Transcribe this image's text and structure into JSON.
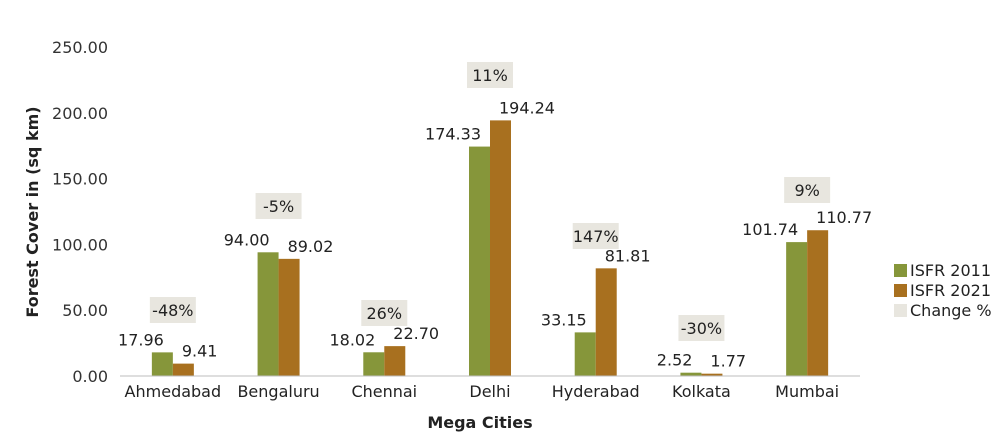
{
  "chart_data": {
    "type": "bar",
    "xlabel": "Mega Cities",
    "ylabel": "Forest Cover in (sq km)",
    "ylim": [
      0,
      250
    ],
    "yticks": [
      "0.00",
      "50.00",
      "100.00",
      "150.00",
      "200.00",
      "250.00"
    ],
    "categories": [
      "Ahmedabad",
      "Bengaluru",
      "Chennai",
      "Delhi",
      "Hyderabad",
      "Kolkata",
      "Mumbai"
    ],
    "series": [
      {
        "name": "ISFR 2011",
        "color": "#86963a",
        "values": [
          17.96,
          94.0,
          18.02,
          174.33,
          33.15,
          2.52,
          101.74
        ],
        "labels": [
          "17.96",
          "94.00",
          "18.02",
          "174.33",
          "33.15",
          "2.52",
          "101.74"
        ]
      },
      {
        "name": "ISFR 2021",
        "color": "#a8701f",
        "values": [
          9.41,
          89.02,
          22.7,
          194.24,
          81.81,
          1.77,
          110.77
        ],
        "labels": [
          "9.41",
          "89.02",
          "22.70",
          "194.24",
          "81.81",
          "1.77",
          "110.77"
        ]
      }
    ],
    "change": {
      "name": "Change %",
      "color": "#e8e6df",
      "labels": [
        "-48%",
        "-5%",
        "26%",
        "11%",
        "147%",
        "-30%",
        "9%"
      ]
    },
    "legend": "right",
    "grid": false
  }
}
